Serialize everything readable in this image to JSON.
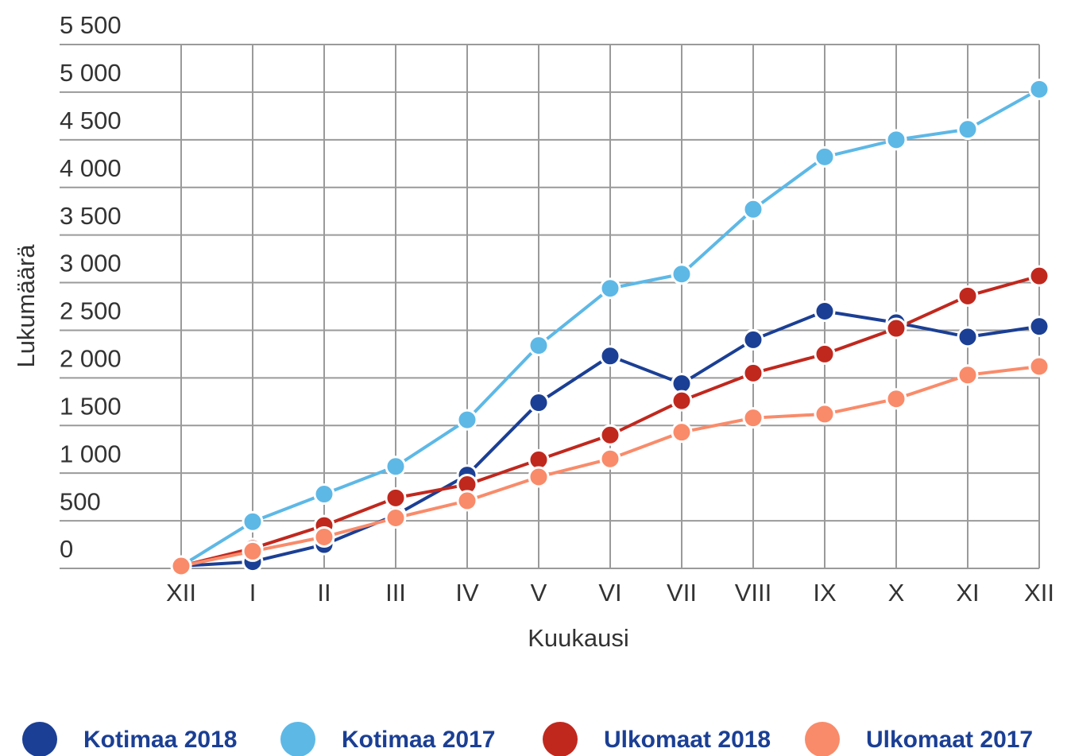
{
  "chart_data": {
    "type": "line",
    "x_label": "Kuukausi",
    "y_label": "Lukumäärä",
    "categories": [
      "XII",
      "I",
      "II",
      "III",
      "IV",
      "V",
      "VI",
      "VII",
      "VIII",
      "IX",
      "X",
      "XI",
      "XII"
    ],
    "series": [
      {
        "name": "Kotimaa 2018",
        "color": "#1b3f94",
        "values": [
          25,
          70,
          250,
          560,
          980,
          1740,
          2230,
          1940,
          2400,
          2700,
          2580,
          2430,
          2540
        ]
      },
      {
        "name": "Kotimaa 2017",
        "color": "#5db8e6",
        "values": [
          25,
          490,
          780,
          1070,
          1560,
          2340,
          2940,
          3090,
          3770,
          4320,
          4500,
          4610,
          5030
        ]
      },
      {
        "name": "Ulkomaat 2018",
        "color": "#c0281e",
        "values": [
          25,
          210,
          450,
          740,
          880,
          1140,
          1400,
          1760,
          2050,
          2250,
          2520,
          2860,
          3070
        ]
      },
      {
        "name": "Ulkomaat 2017",
        "color": "#f98b6a",
        "values": [
          25,
          180,
          330,
          530,
          710,
          960,
          1150,
          1430,
          1580,
          1620,
          1780,
          2030,
          2120
        ]
      }
    ],
    "ylim": [
      0,
      5500
    ],
    "yticks": [
      0,
      500,
      {
        "value": 1000,
        "label": "1 000"
      },
      {
        "value": 1500,
        "label": "1 500"
      },
      {
        "value": 2000,
        "label": "2 000"
      },
      {
        "value": 2500,
        "label": "2 500"
      },
      {
        "value": 3000,
        "label": "3 000"
      },
      {
        "value": 3500,
        "label": "3 500"
      },
      {
        "value": 4000,
        "label": "4 000"
      },
      {
        "value": 4500,
        "label": "4 500"
      },
      {
        "value": 5000,
        "label": "5 000"
      },
      {
        "value": 5500,
        "label": "5 500"
      }
    ],
    "grid": true,
    "legend": "bottom"
  }
}
